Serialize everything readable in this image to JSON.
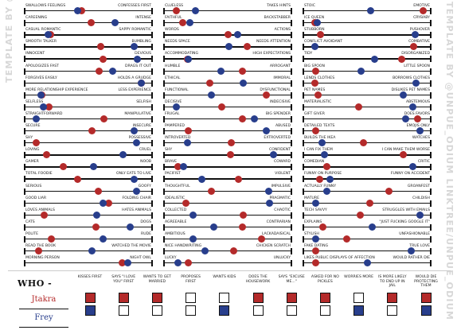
{
  "watermark_left": "TEMPLATE BY @",
  "watermark_right": "TEMPLATE BY @UNPUE_ODIUM   LINKTREE/UNPUE_ODIUM",
  "colors": {
    "red": "#b42a2a",
    "blue": "#283e8c"
  },
  "columns": [
    [
      {
        "left": "Swallows feelings",
        "right": "Confesses first",
        "red": 0.44,
        "blue": 0.41
      },
      {
        "left": "Careening",
        "right": "Intense",
        "red": 0.52,
        "blue": 0.72
      },
      {
        "left": "Casual romantic",
        "right": "Sappy romantic",
        "red": 0.18,
        "blue": 0.16
      },
      {
        "left": "Smooth talker",
        "right": "Bumbling",
        "red": 0.6,
        "blue": 0.88
      },
      {
        "left": "Innocent",
        "right": "Devious",
        "red": 0.62,
        "blue": 0.91
      },
      {
        "left": "Apologizes fast",
        "right": "Drags it out",
        "red": 0.59,
        "blue": 0.7
      },
      {
        "left": "Forgives easily",
        "right": "Holds a grudge",
        "red": 0.94,
        "blue": 0.94
      },
      {
        "left": "More relationship experience",
        "right": "Less experience",
        "red": 0.11,
        "blue": 0.1
      },
      {
        "left": "Selfless",
        "right": "Selfish",
        "red": 0.17,
        "blue": 0.12
      },
      {
        "left": "Straightforward",
        "right": "Manipulative",
        "red": 0.63,
        "blue": 0.06
      },
      {
        "left": "Secure",
        "right": "Insecure",
        "red": 0.53,
        "blue": 0.88
      },
      {
        "left": "Shy",
        "right": "Possessive",
        "red": 0.06,
        "blue": 0.9
      },
      {
        "left": "Loving",
        "right": "Cruel",
        "red": 0.15,
        "blue": 0.79
      },
      {
        "left": "Gamer",
        "right": "Noob",
        "red": 0.29,
        "blue": 0.54
      },
      {
        "left": "Total foodie",
        "right": "Only eats to live",
        "red": 0.41,
        "blue": 0.88
      },
      {
        "left": "Serious",
        "right": "Goofy",
        "red": 0.58,
        "blue": 0.9
      },
      {
        "left": "Good liar",
        "right": "Folding chair",
        "red": 0.67,
        "blue": 0.62
      },
      {
        "left": "Loves animals",
        "right": "Hates animals",
        "red": 0.13,
        "blue": 0.57
      },
      {
        "left": "Cats",
        "right": "Dogs",
        "red": 0.56,
        "blue": 0.85
      },
      {
        "left": "Polite",
        "right": "Rude",
        "red": 0.19,
        "blue": 0.62
      },
      {
        "left": "Read the book",
        "right": "Watched the movie",
        "red": 0.08,
        "blue": 0.53
      },
      {
        "left": "Morning person",
        "right": "Night owl",
        "red": 0.78,
        "blue": 0.83
      }
    ],
    [
      {
        "left": "Clueless",
        "right": "Takes hints",
        "red": 0.07,
        "blue": 0.23
      },
      {
        "left": "Faithful",
        "right": "Backstabber",
        "red": 0.12,
        "blue": 0.18
      },
      {
        "left": "Words",
        "right": "Actions",
        "red": 0.5,
        "blue": 0.58
      },
      {
        "left": "Needs space",
        "right": "Needs attention",
        "red": 0.66,
        "blue": 0.51
      },
      {
        "left": "Accommodating",
        "right": "High expectations",
        "red": 0.16,
        "blue": 0.17
      },
      {
        "left": "Humble",
        "right": "Arrogant",
        "red": 0.62,
        "blue": 0.44
      },
      {
        "left": "Ethical",
        "right": "Immoral",
        "red": 0.35,
        "blue": 0.63
      },
      {
        "left": "Functional",
        "right": "Dysfunctional",
        "red": 0.82,
        "blue": 0.36
      },
      {
        "left": "Decisive",
        "right": "Indecisive",
        "red": 0.45,
        "blue": 0.07
      },
      {
        "left": "Frugal",
        "right": "Big spender",
        "red": 0.62,
        "blue": 0.72
      },
      {
        "left": "Pampered",
        "right": "Abused",
        "red": 0.17,
        "blue": 0.82
      },
      {
        "left": "Introverted",
        "right": "Extroverted",
        "red": 0.53,
        "blue": 0.16
      },
      {
        "left": "Shy",
        "right": "Confident",
        "red": 0.52,
        "blue": 0.88
      },
      {
        "left": "Brave",
        "right": "Coward",
        "red": 0.08,
        "blue": 0.13
      },
      {
        "left": "Pacifist",
        "right": "Violent",
        "red": 0.59,
        "blue": 0.28
      },
      {
        "left": "Thoughtful",
        "right": "Impulsive",
        "red": 0.36,
        "blue": 0.84
      },
      {
        "left": "Idealistic",
        "right": "Pragmatic",
        "red": 0.15,
        "blue": 0.85
      },
      {
        "left": "Collected",
        "right": "Chaotic",
        "red": 0.63,
        "blue": 0.21
      },
      {
        "left": "Agreeable",
        "right": "Contrarian",
        "red": 0.62,
        "blue": 0.38
      },
      {
        "left": "Ambitious",
        "right": "Lackadaisical",
        "red": 0.78,
        "blue": 0.21
      },
      {
        "left": "Nice handwriting",
        "right": "Chicken scratch",
        "red": 0.55,
        "blue": 0.31
      },
      {
        "left": "Lucky",
        "right": "Unlucky",
        "red": 0.17,
        "blue": 0.08
      }
    ],
    [
      {
        "left": "Stoic",
        "right": "Emotive",
        "red": 0.97,
        "blue": 0.53
      },
      {
        "left": "Ice queen",
        "right": "Crybaby",
        "red": 0.06,
        "blue": 0.08
      },
      {
        "left": "Stubborn",
        "right": "Pushover",
        "red": 0.11,
        "blue": 0.9
      },
      {
        "left": "Conflict avoidant",
        "right": "Combative",
        "red": 0.89,
        "blue": 0.06
      },
      {
        "left": "Tidy",
        "right": "Disorganized",
        "red": 0.79,
        "blue": 0.56
      },
      {
        "left": "Big spoon",
        "right": "Little spoon",
        "red": 0.07,
        "blue": 0.45
      },
      {
        "left": "Lends clothes",
        "right": "Borrows clothes",
        "red": 0.06,
        "blue": 0.91
      },
      {
        "left": "Pet names",
        "right": "Dislikes pet names",
        "red": 0.09,
        "blue": 0.8
      },
      {
        "left": "Materialistic",
        "right": "Abstemious",
        "red": 0.43,
        "blue": 0.88
      },
      {
        "left": "Gift giver",
        "right": "Does favors",
        "red": 0.92,
        "blue": 0.82
      },
      {
        "left": "Detailed texts",
        "right": "Emojis only",
        "red": 0.07,
        "blue": 0.94
      },
      {
        "left": "Builds the IKEA",
        "right": "Watches",
        "red": 0.47,
        "blue": 0.12
      },
      {
        "left": "I can fix them",
        "right": "I can make them worse",
        "red": 0.8,
        "blue": 0.14
      },
      {
        "left": "Comedian",
        "right": "Critic",
        "red": 0.16,
        "blue": 0.88
      },
      {
        "left": "Funny on purpose",
        "right": "Funny on accident",
        "red": 0.1,
        "blue": 0.19
      },
      {
        "left": "Actually funny",
        "right": "Groanfest",
        "red": 0.68,
        "blue": 0.16
      },
      {
        "left": "Mature",
        "right": "Childish",
        "red": 0.52,
        "blue": 0.07
      },
      {
        "left": "Tech savvy",
        "right": "Struggles with emails",
        "red": 0.44,
        "blue": 0.94
      },
      {
        "left": "Explains",
        "right": "\"Just fucking google it\"",
        "red": 0.13,
        "blue": 0.54
      },
      {
        "left": "Stylish",
        "right": "Unfashionable",
        "red": 0.33,
        "blue": 0.07
      },
      {
        "left": "Fake dating",
        "right": "True love",
        "red": 0.07,
        "blue": 0.87
      },
      {
        "left": "Likes public displays of affection",
        "right": "Would rather die",
        "red": 0.07,
        "blue": 0.5
      }
    ]
  ],
  "bottom": {
    "who_label": "WHO -",
    "names": [
      "Jtakra",
      "Frey"
    ],
    "categories": [
      {
        "label": "Kisses first",
        "p1": "red",
        "p2": "blue"
      },
      {
        "label": "Says \"I love you\" first",
        "p1": "red",
        "p2": "empty"
      },
      {
        "label": "Wants to get married",
        "p1": "red",
        "p2": "empty"
      },
      {
        "label": "Proposes first",
        "p1": "empty",
        "p2": "empty"
      },
      {
        "label": "Wants kids",
        "p1": "empty",
        "p2": "blue"
      },
      {
        "label": "Does the housework",
        "p1": "red",
        "p2": "empty"
      },
      {
        "label": "Says \"excuse me...\"",
        "p1": "red",
        "p2": "empty"
      },
      {
        "label": "Asked for no pickles",
        "p1": "red",
        "p2": "empty"
      },
      {
        "label": "Worries more",
        "p1": "empty",
        "p2": "blue"
      },
      {
        "label": "Is more likely to end up in jail",
        "p1": "red",
        "p2": "empty"
      },
      {
        "label": "Would die protecting them",
        "p1": "red",
        "p2": "blue"
      }
    ]
  }
}
